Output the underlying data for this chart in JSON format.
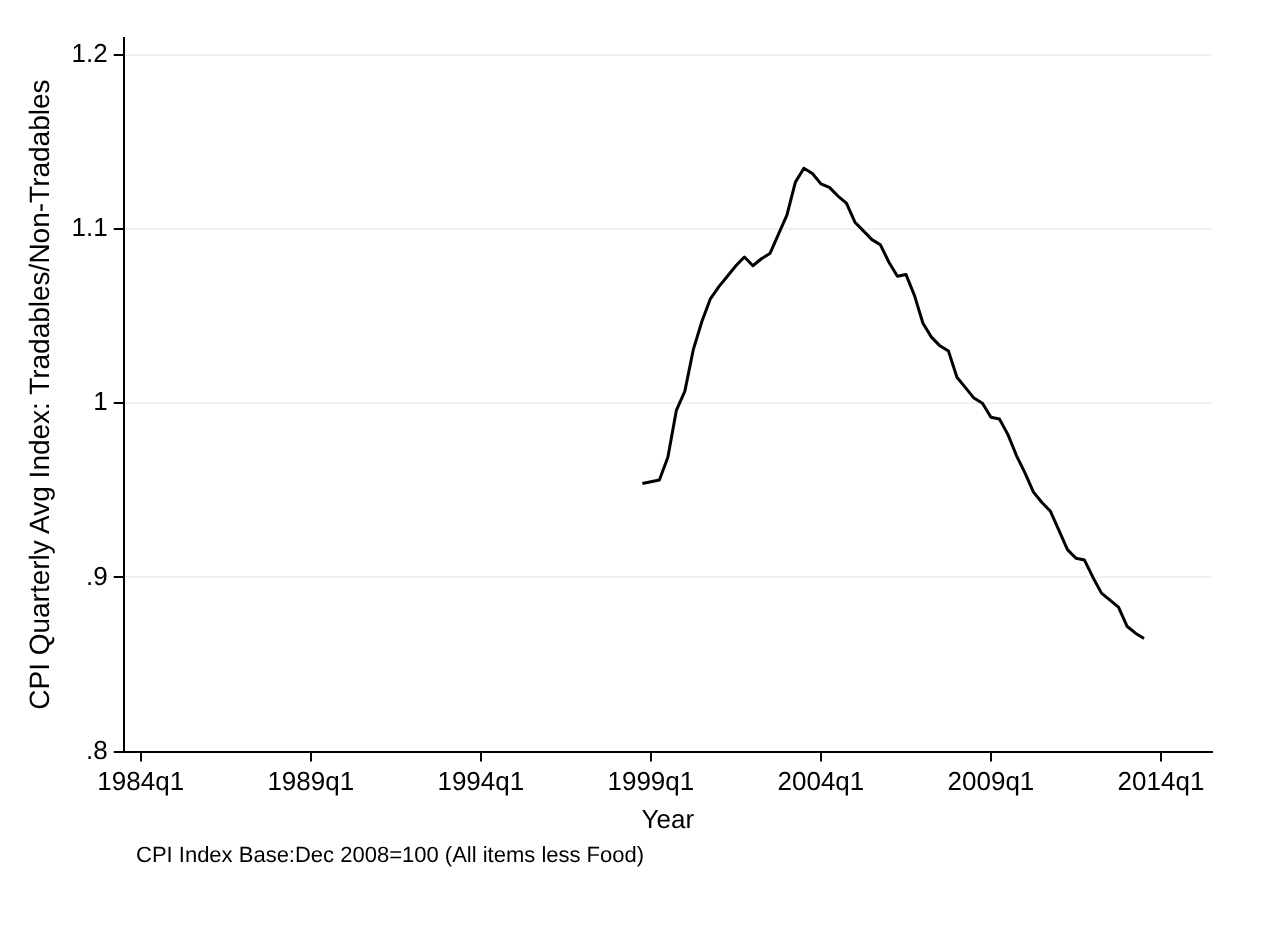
{
  "chart_data": {
    "type": "line",
    "xlabel": "Year",
    "ylabel": "CPI Quarterly Avg Index: Tradables/Non-Tradables",
    "annotations": [
      "CPI Index Base:Dec 2008=100 (All items less Food)"
    ],
    "categories": [
      null,
      null,
      "1984q1",
      null,
      null,
      null,
      null,
      null,
      null,
      null,
      null,
      null,
      null,
      null,
      null,
      null,
      null,
      null,
      null,
      null,
      null,
      null,
      "1989q1",
      null,
      null,
      null,
      null,
      null,
      null,
      null,
      null,
      null,
      null,
      null,
      null,
      null,
      null,
      null,
      null,
      null,
      null,
      null,
      "1994q1",
      null,
      null,
      null,
      null,
      null,
      null,
      null,
      null,
      null,
      null,
      null,
      null,
      null,
      null,
      null,
      null,
      null,
      null,
      null,
      "1999q1",
      null,
      null,
      null,
      null,
      null,
      null,
      null,
      null,
      null,
      null,
      null,
      null,
      null,
      null,
      null,
      null,
      null,
      null,
      null,
      "2004q1",
      null,
      null,
      null,
      null,
      null,
      null,
      null,
      null,
      null,
      null,
      null,
      null,
      null,
      null,
      null,
      null,
      null,
      null,
      null,
      "2009q1",
      null,
      null,
      null,
      null,
      null,
      null,
      null,
      null,
      null,
      null,
      null,
      null,
      null,
      null,
      null,
      null,
      null,
      null,
      null,
      "2014q1",
      null,
      null,
      null,
      null,
      null,
      null
    ],
    "series": [
      {
        "color": "#000000",
        "values": [
          null,
          null,
          null,
          null,
          null,
          null,
          null,
          null,
          null,
          null,
          null,
          null,
          null,
          null,
          null,
          null,
          null,
          null,
          null,
          null,
          null,
          null,
          null,
          null,
          null,
          null,
          null,
          null,
          null,
          null,
          null,
          null,
          null,
          null,
          null,
          null,
          null,
          null,
          null,
          null,
          null,
          null,
          null,
          null,
          null,
          null,
          null,
          null,
          null,
          null,
          null,
          null,
          null,
          null,
          null,
          null,
          null,
          null,
          null,
          null,
          null,
          0.954,
          0.955,
          0.956,
          0.969,
          0.996,
          1.007,
          1.031,
          1.047,
          1.06,
          1.067,
          1.073,
          1.079,
          1.084,
          1.079,
          1.083,
          1.086,
          1.097,
          1.108,
          1.127,
          1.135,
          1.132,
          1.126,
          1.124,
          1.119,
          1.115,
          1.104,
          1.099,
          1.094,
          1.091,
          1.081,
          1.073,
          1.074,
          1.062,
          1.046,
          1.038,
          1.033,
          1.03,
          1.015,
          1.009,
          1.003,
          1.0,
          0.992,
          0.991,
          0.982,
          0.97,
          0.96,
          0.949,
          0.943,
          0.938,
          0.927,
          0.916,
          0.911,
          0.91,
          0.9,
          0.891,
          0.887,
          0.883,
          0.872,
          0.868,
          0.865,
          null,
          null,
          null,
          null,
          null,
          null,
          null,
          null
        ]
      }
    ],
    "ylim": [
      0.8,
      1.21
    ],
    "yticks": [
      {
        "value": 0.8,
        "label": ".8"
      },
      {
        "value": 0.9,
        "label": ".9"
      },
      {
        "value": 1,
        "label": "1"
      },
      {
        "value": 1.1,
        "label": "1.1"
      },
      {
        "value": 1.2,
        "label": "1.2"
      }
    ],
    "grid": "y",
    "legend": false,
    "marker": "none",
    "line_style": "solid"
  }
}
